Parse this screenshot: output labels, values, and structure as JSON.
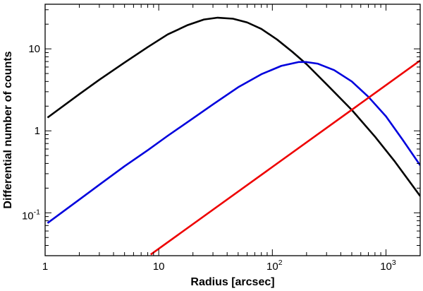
{
  "chart_data": {
    "type": "line",
    "xlabel": "Radius [arcsec]",
    "ylabel": "Differential number of counts",
    "xscale": "log",
    "yscale": "log",
    "xlim": [
      1,
      2000
    ],
    "ylim": [
      0.03,
      35
    ],
    "grid": false,
    "legend": "none",
    "x_ticks": [
      {
        "value": 1,
        "base": "1",
        "exp": ""
      },
      {
        "value": 10,
        "base": "10",
        "exp": ""
      },
      {
        "value": 100,
        "base": "10",
        "exp": "2"
      },
      {
        "value": 1000,
        "base": "10",
        "exp": "3"
      }
    ],
    "y_ticks": [
      {
        "value": 0.1,
        "base": "10",
        "exp": "-1"
      },
      {
        "value": 1,
        "base": "1",
        "exp": ""
      },
      {
        "value": 10,
        "base": "10",
        "exp": ""
      }
    ],
    "series": [
      {
        "color": "#000000",
        "x": [
          1.05,
          2,
          3,
          5,
          8,
          12,
          18,
          25,
          33,
          45,
          60,
          80,
          110,
          150,
          200,
          300,
          500,
          800,
          1200,
          2000
        ],
        "y": [
          1.45,
          2.8,
          4.2,
          6.8,
          10.5,
          15,
          19.5,
          22.8,
          24,
          23.3,
          21,
          17.5,
          13,
          9.2,
          6.5,
          3.7,
          1.8,
          0.85,
          0.42,
          0.16
        ]
      },
      {
        "color": "#0000dd",
        "x": [
          1.05,
          2,
          3,
          5,
          8,
          12,
          20,
          30,
          50,
          80,
          120,
          170,
          200,
          250,
          350,
          500,
          700,
          1000,
          1400,
          2000
        ],
        "y": [
          0.075,
          0.145,
          0.22,
          0.37,
          0.58,
          0.87,
          1.42,
          2.1,
          3.4,
          4.9,
          6.2,
          6.9,
          6.9,
          6.6,
          5.5,
          4.0,
          2.6,
          1.5,
          0.78,
          0.38
        ]
      },
      {
        "color": "#ee0000",
        "x": [
          8.5,
          2000
        ],
        "y": [
          0.031,
          7.2
        ]
      }
    ]
  }
}
